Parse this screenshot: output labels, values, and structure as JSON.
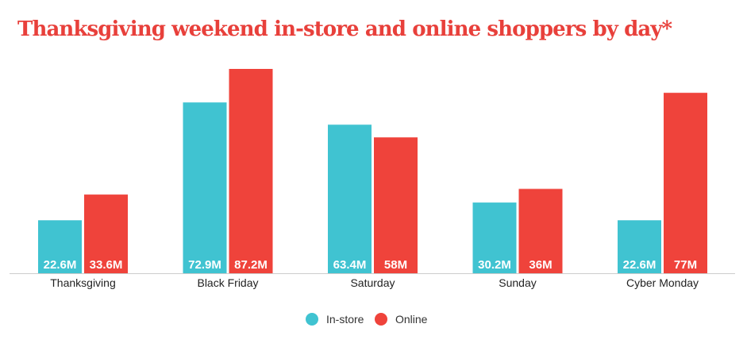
{
  "colors": {
    "title": "#e8403b",
    "in_store": "#40c3d1",
    "online": "#ef433b",
    "axis": "#cccccc"
  },
  "chart_data": {
    "type": "bar",
    "title": "Thanksgiving weekend in-store and online shoppers by day*",
    "categories": [
      "Thanksgiving",
      "Black Friday",
      "Saturday",
      "Sunday",
      "Cyber Monday"
    ],
    "series": [
      {
        "name": "In-store",
        "values": [
          22.6,
          72.9,
          63.4,
          30.2,
          22.6
        ],
        "labels": [
          "22.6M",
          "72.9M",
          "63.4M",
          "30.2M",
          "22.6M"
        ]
      },
      {
        "name": "Online",
        "values": [
          33.6,
          87.2,
          58,
          36,
          77
        ],
        "labels": [
          "33.6M",
          "87.2M",
          "58M",
          "36M",
          "77M"
        ]
      }
    ],
    "ylim": [
      0,
      87.2
    ],
    "xlabel": "",
    "ylabel": "",
    "grid": false,
    "legend_position": "bottom-center"
  }
}
